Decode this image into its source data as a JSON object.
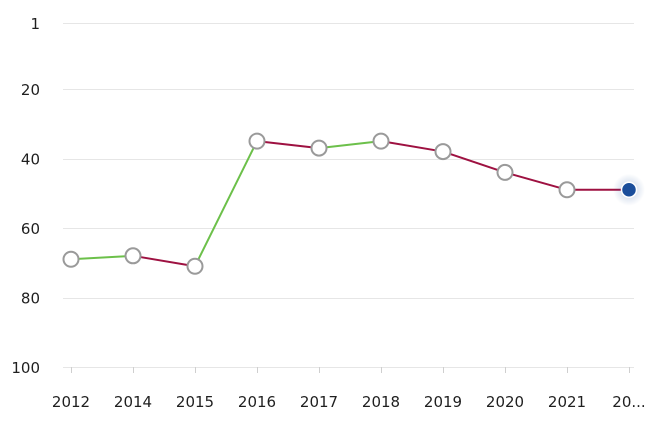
{
  "chart_data": {
    "type": "line",
    "x_categories": [
      "2012",
      "2014",
      "2015",
      "2016",
      "2017",
      "2018",
      "2019",
      "2020",
      "2021",
      "20..."
    ],
    "values": [
      69,
      68,
      71,
      35,
      37,
      35,
      38,
      44,
      49,
      49
    ],
    "y_axis": {
      "inverted": true,
      "range": [
        1,
        100
      ],
      "ticks": [
        1,
        20,
        40,
        60,
        80,
        100
      ]
    },
    "title": "",
    "xlabel": "",
    "ylabel": "",
    "grid": true,
    "colors": {
      "improving_segment": "#6cc04a",
      "declining_segment": "#9e1141",
      "point_fill": "#ffffff",
      "point_stroke": "#9a9a9a",
      "current_point": "#1b4e9b",
      "grid": "#e6e6e6",
      "tick_text": "#1f1f1f"
    }
  }
}
